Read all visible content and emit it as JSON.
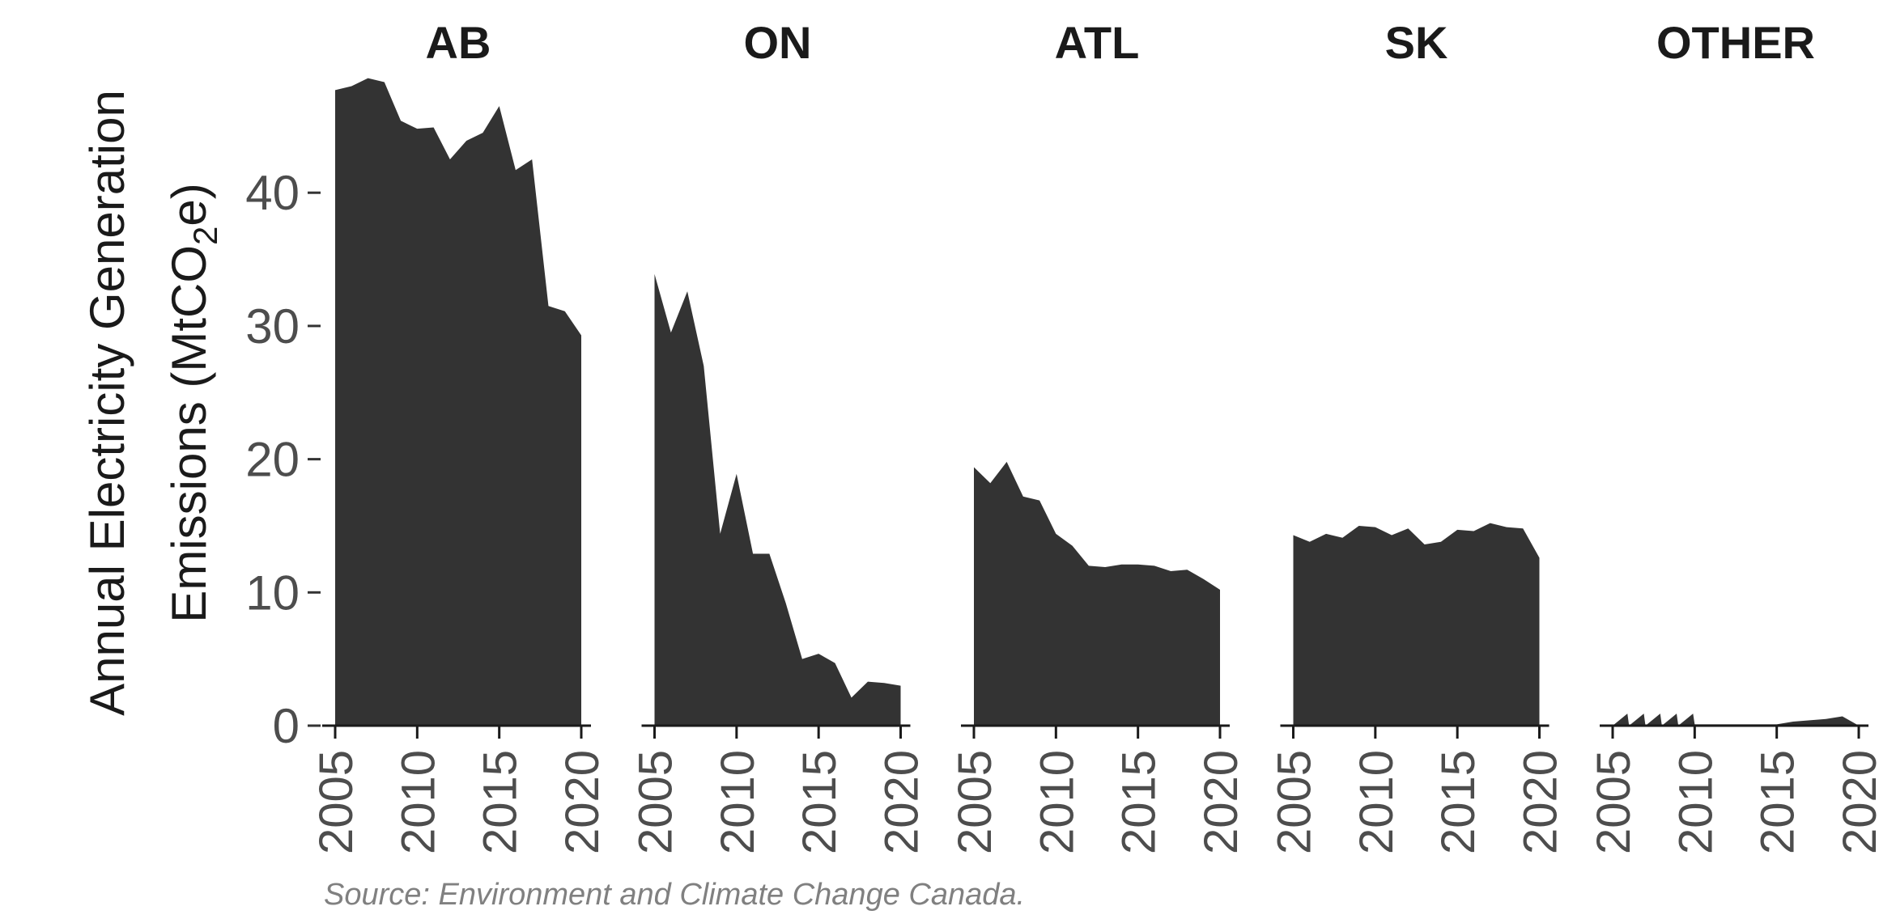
{
  "chart_data": {
    "type": "area",
    "ylabel_line1": "Annual Electricity Generation",
    "ylabel_line2_prefix": "Emissions  (MtCO",
    "ylabel_line2_sub": "2",
    "ylabel_line2_suffix": "e)",
    "caption": "Source: Environment and Climate Change Canada.",
    "ylim": [
      0,
      49
    ],
    "yticks": [
      0,
      10,
      20,
      30,
      40
    ],
    "xlim": [
      2005,
      2020
    ],
    "xticks": [
      2005,
      2010,
      2015,
      2020
    ],
    "grid": false,
    "fill_color": "#333333",
    "facets": [
      {
        "title": "AB",
        "x": [
          2005,
          2006,
          2007,
          2008,
          2009,
          2010,
          2011,
          2012,
          2013,
          2014,
          2015,
          2016,
          2017,
          2018,
          2019,
          2020
        ],
        "y": [
          47.7,
          48.0,
          48.6,
          48.3,
          45.4,
          44.8,
          44.9,
          42.5,
          43.9,
          44.5,
          46.5,
          41.7,
          42.5,
          31.5,
          31.1,
          29.3
        ]
      },
      {
        "title": "ON",
        "x": [
          2005,
          2006,
          2007,
          2008,
          2009,
          2010,
          2011,
          2012,
          2013,
          2014,
          2015,
          2016,
          2017,
          2018,
          2019,
          2020
        ],
        "y": [
          33.9,
          29.5,
          32.6,
          27.0,
          14.4,
          18.9,
          12.9,
          12.9,
          9.2,
          5.0,
          5.4,
          4.7,
          2.1,
          3.3,
          3.2,
          3.0
        ]
      },
      {
        "title": "ATL",
        "x": [
          2005,
          2006,
          2007,
          2008,
          2009,
          2010,
          2011,
          2012,
          2013,
          2014,
          2015,
          2016,
          2017,
          2018,
          2019,
          2020
        ],
        "y": [
          19.4,
          18.2,
          19.8,
          17.2,
          16.9,
          14.4,
          13.5,
          12.0,
          11.9,
          12.1,
          12.1,
          12.0,
          11.6,
          11.7,
          11.0,
          10.2
        ]
      },
      {
        "title": "SK",
        "x": [
          2005,
          2006,
          2007,
          2008,
          2009,
          2010,
          2011,
          2012,
          2013,
          2014,
          2015,
          2016,
          2017,
          2018,
          2019,
          2020
        ],
        "y": [
          14.3,
          13.8,
          14.4,
          14.1,
          15.0,
          14.9,
          14.3,
          14.8,
          13.6,
          13.8,
          14.7,
          14.6,
          15.2,
          14.9,
          14.8,
          12.6
        ]
      },
      {
        "title": "OTHER",
        "x": [
          2005,
          2005.9,
          2006,
          2006.9,
          2007,
          2007.9,
          2008,
          2008.9,
          2009,
          2009.9,
          2010,
          2011,
          2012,
          2013,
          2014,
          2015,
          2016,
          2017,
          2018,
          2019,
          2020
        ],
        "y": [
          0.0,
          0.9,
          0.0,
          0.9,
          0.0,
          0.9,
          0.0,
          0.9,
          0.0,
          0.9,
          0.1,
          0.1,
          0.1,
          0.1,
          0.1,
          0.1,
          0.3,
          0.4,
          0.5,
          0.7,
          0.0
        ]
      }
    ]
  }
}
